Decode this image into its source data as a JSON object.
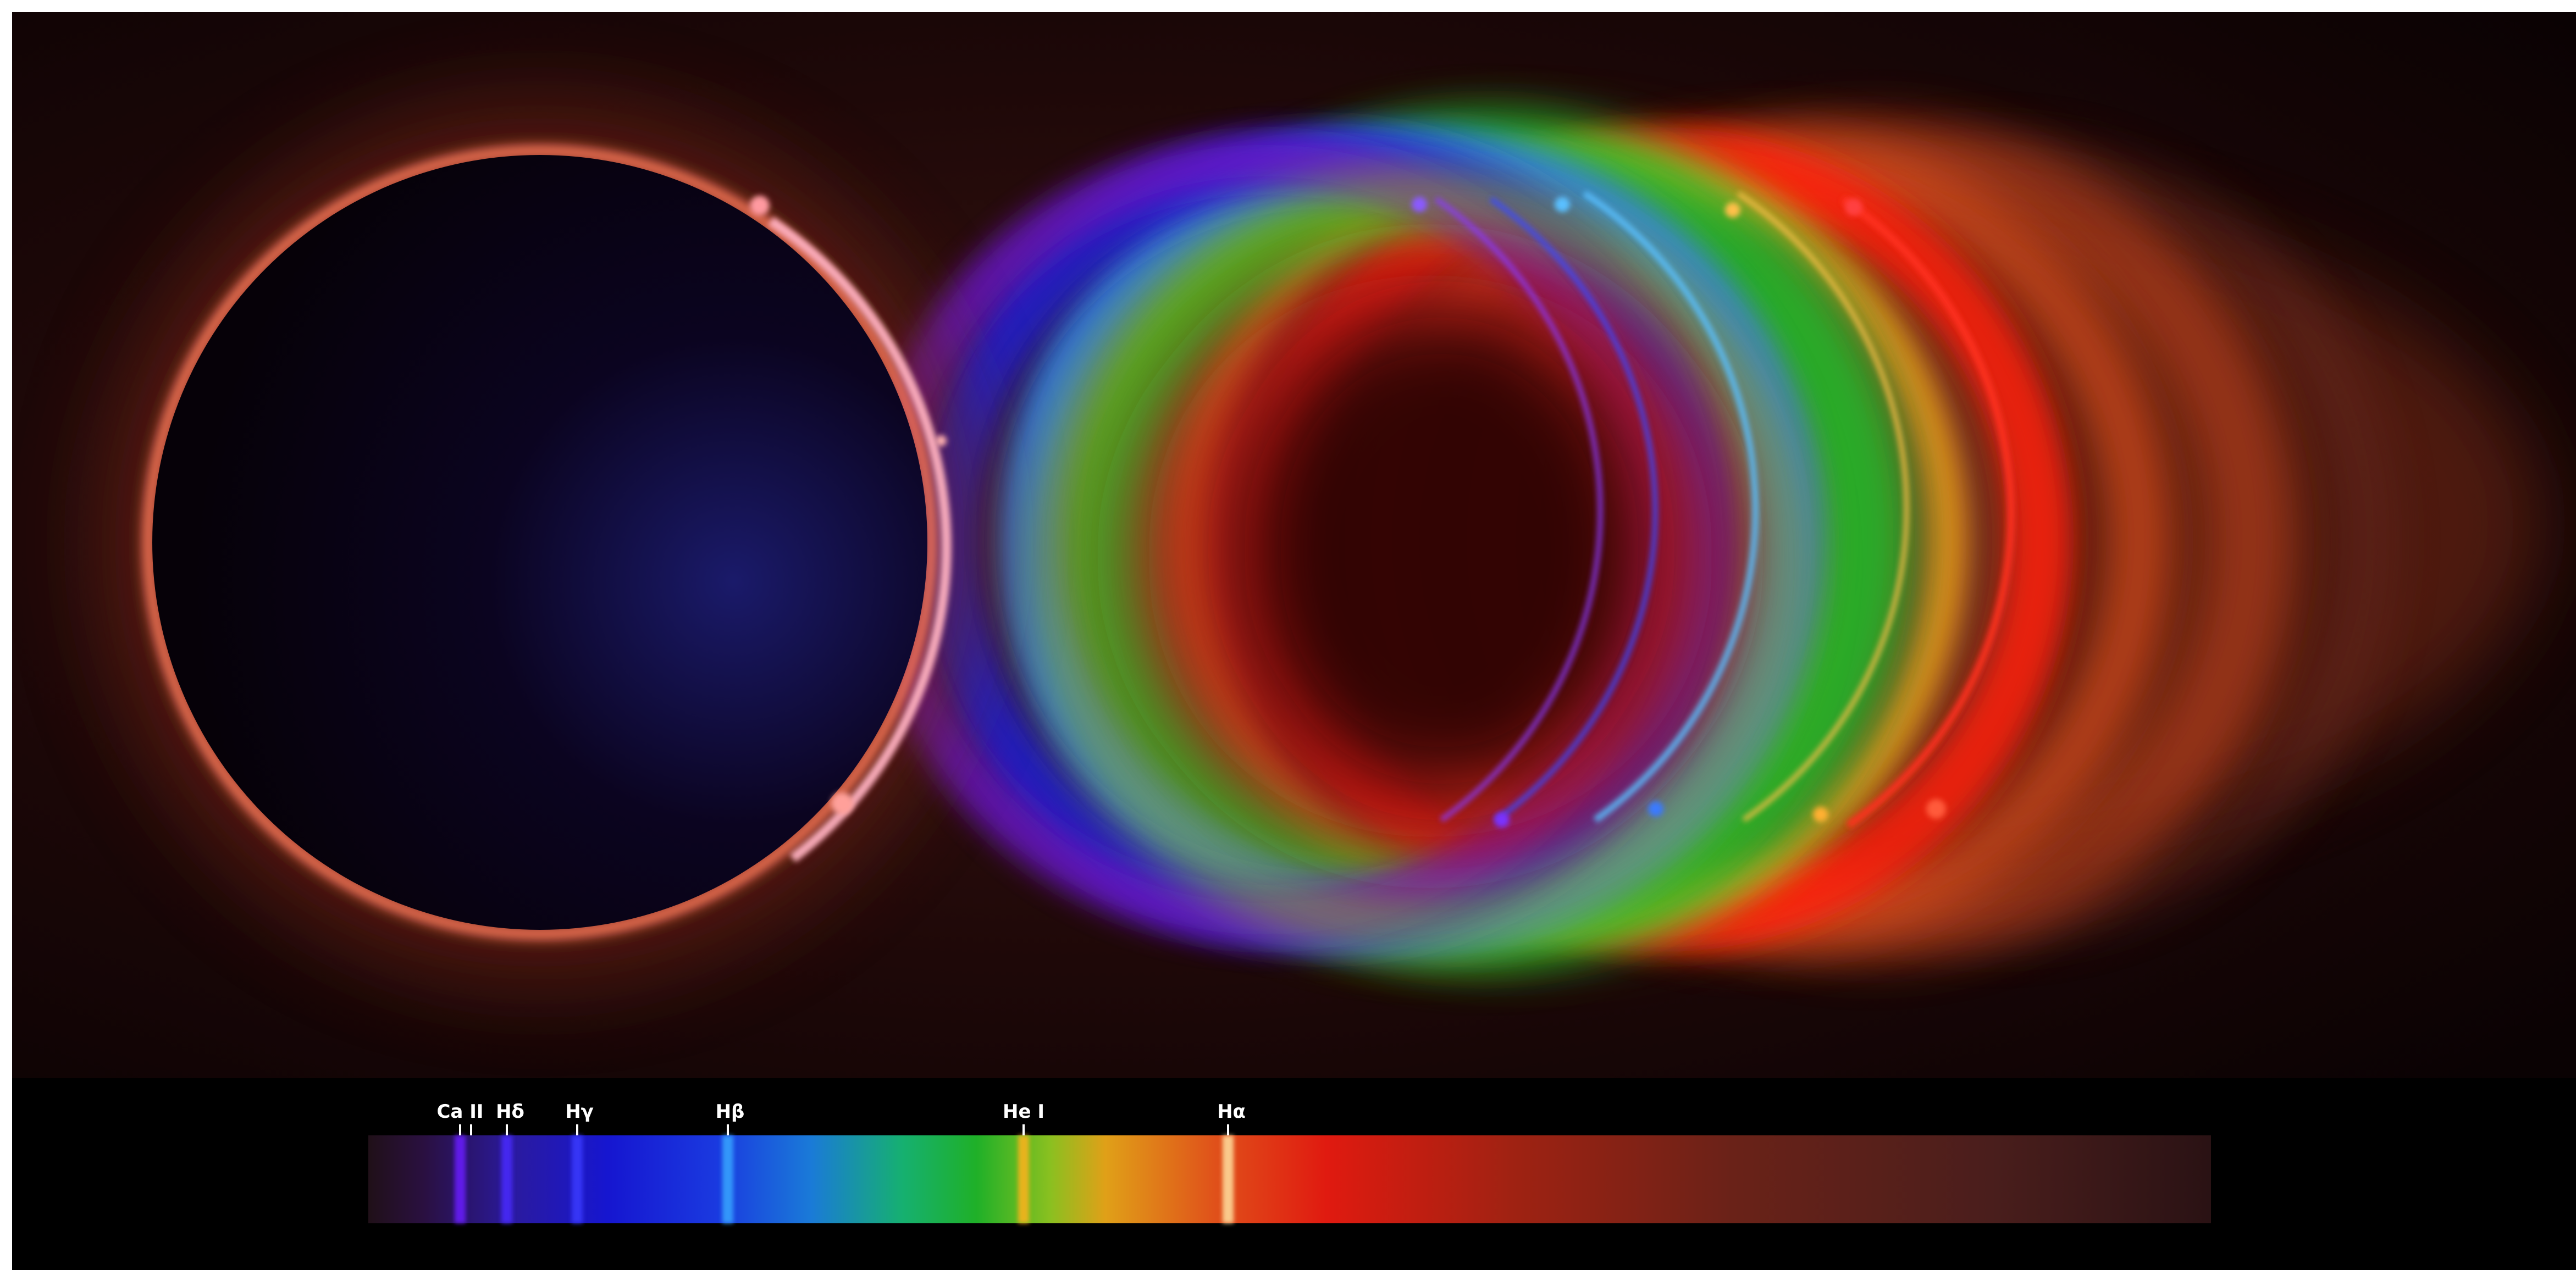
{
  "image": {
    "subject": "total-solar-eclipse-flash-spectrum",
    "colors": {
      "corona": "#ff6a4a",
      "sky": "#0c0304",
      "disk": "#07020a",
      "spectrum_background": "#000000",
      "label_text": "#ffffff"
    }
  },
  "spectrum_strip": {
    "lines": [
      {
        "label": "Ca II",
        "color": "#6a1bff"
      },
      {
        "label": "Hδ",
        "color": "#4a2cff"
      },
      {
        "label": "Hγ",
        "color": "#3b3bff"
      },
      {
        "label": "Hβ",
        "color": "#39a6ff"
      },
      {
        "label": "He I",
        "color": "#ffb21a"
      },
      {
        "label": "Hα",
        "color": "#ffe0a0"
      }
    ]
  }
}
